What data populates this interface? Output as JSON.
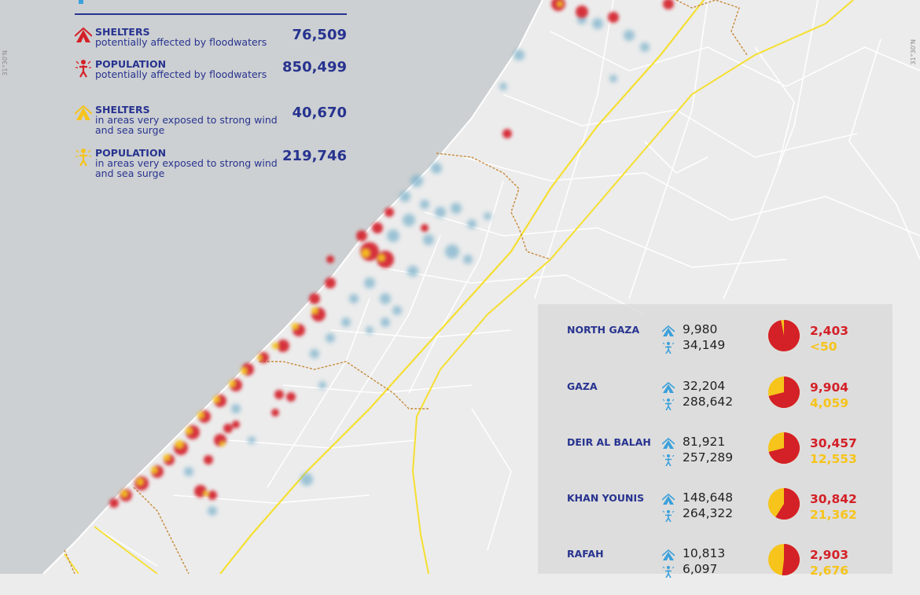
{
  "map": {
    "coord_left": "31°30'N",
    "coord_right": "31°30'N",
    "colors": {
      "sea": "#cdd0d2",
      "land": "#ececec",
      "road": "#ffffff",
      "main_road": "#f5df30",
      "boundary": "#d39a45",
      "flood": "#d42027",
      "exposed": "#f6c41a",
      "shelter": "#7fb4cc"
    }
  },
  "legend": {
    "items": [
      {
        "icon": "tent-red-icon",
        "title": "SHELTERS",
        "desc": "potentially affected by floodwaters",
        "value": "76,509"
      },
      {
        "icon": "person-red-icon",
        "title": "POPULATION",
        "desc": "potentially affected by floodwaters",
        "value": "850,499"
      },
      {
        "icon": "tent-yellow-icon",
        "title": "SHELTERS",
        "desc": "in areas very exposed to strong wind and sea surge",
        "value": "40,670"
      },
      {
        "icon": "person-yellow-icon",
        "title": "POPULATION",
        "desc": "in areas very exposed to strong wind and sea surge",
        "value": "219,746"
      }
    ]
  },
  "governorates": [
    {
      "name": "NORTH GAZA",
      "shelters": "9,980",
      "population": "34,149",
      "flood": "2,403",
      "exposed": "<50",
      "flood_share": 0.97
    },
    {
      "name": "GAZA",
      "shelters": "32,204",
      "population": "288,642",
      "flood": "9,904",
      "exposed": "4,059",
      "flood_share": 0.71
    },
    {
      "name": "DEIR AL BALAH",
      "shelters": "81,921",
      "population": "257,289",
      "flood": "30,457",
      "exposed": "12,553",
      "flood_share": 0.71
    },
    {
      "name": "KHAN YOUNIS",
      "shelters": "148,648",
      "population": "264,322",
      "flood": "30,842",
      "exposed": "21,362",
      "flood_share": 0.59
    },
    {
      "name": "RAFAH",
      "shelters": "10,813",
      "population": "6,097",
      "flood": "2,903",
      "exposed": "2,676",
      "flood_share": 0.52
    }
  ]
}
